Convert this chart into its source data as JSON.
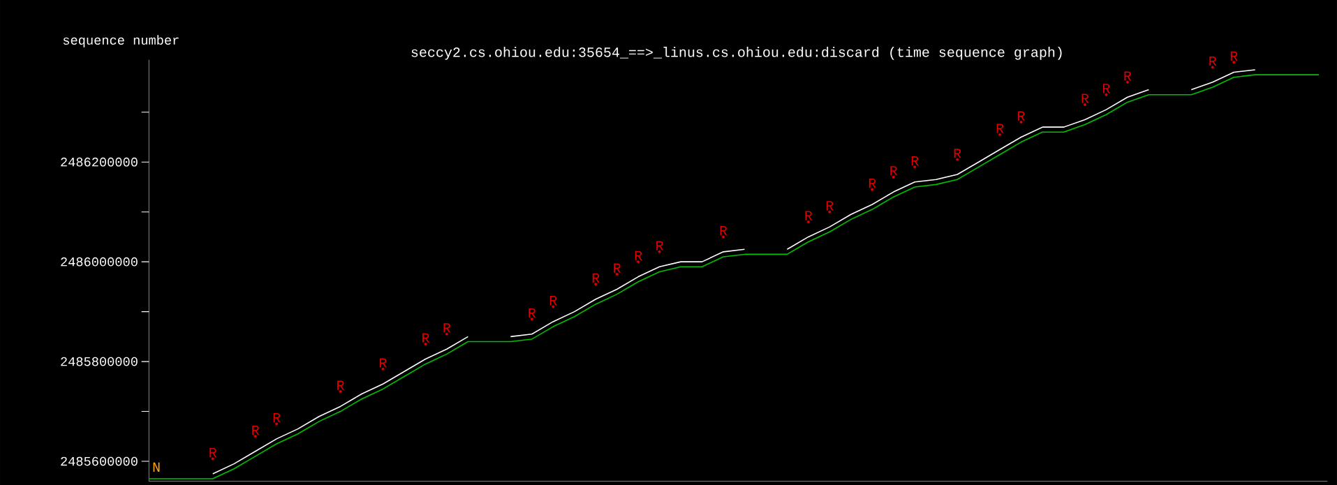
{
  "chart_data": {
    "type": "line",
    "title": "seccy2.cs.ohiou.edu:35654_==>_linus.cs.ohiou.edu:discard (time sequence graph)",
    "ylabel": "sequence number",
    "categories": [
      null,
      null,
      null,
      null,
      null,
      null,
      null,
      null,
      null,
      null,
      null,
      null,
      null,
      null,
      null,
      null,
      null,
      null,
      null,
      null,
      null,
      null,
      null,
      null,
      null,
      null,
      null,
      null,
      null,
      null,
      null,
      null,
      null,
      null,
      null,
      null,
      null,
      null,
      null,
      null,
      null,
      null,
      null,
      null,
      null,
      null,
      null,
      null,
      null,
      null,
      null,
      null,
      null,
      null,
      null,
      null
    ],
    "tick_labels": "y",
    "ylim": [
      2485560000,
      2486405000
    ],
    "yticks": [
      2485600000,
      {
        "value": 2485700000,
        "label": null
      },
      2485800000,
      {
        "value": 2485900000,
        "label": null
      },
      2486000000,
      {
        "value": 2486100000,
        "label": null
      },
      2486200000,
      {
        "value": 2486300000,
        "label": null
      }
    ],
    "series": [
      {
        "color": "#00c000",
        "values": [
          2485565000,
          2485565000,
          2485565000,
          2485565000,
          2485585000,
          2485610000,
          2485635000,
          2485655000,
          2485680000,
          2485700000,
          2485725000,
          2485745000,
          2485770000,
          2485795000,
          2485815000,
          2485840000,
          2485840000,
          2485840000,
          2485845000,
          2485870000,
          2485890000,
          2485915000,
          2485935000,
          2485960000,
          2485980000,
          2485990000,
          2485990000,
          2486010000,
          2486015000,
          2486015000,
          2486015000,
          2486040000,
          2486060000,
          2486085000,
          2486105000,
          2486130000,
          2486150000,
          2486155000,
          2486165000,
          2486190000,
          2486215000,
          2486240000,
          2486260000,
          2486260000,
          2486275000,
          2486295000,
          2486320000,
          2486335000,
          2486335000,
          2486335000,
          2486350000,
          2486370000,
          2486375000,
          2486375000,
          2486375000,
          2486375000
        ]
      },
      {
        "color": "#ffffff",
        "values": [
          null,
          null,
          null,
          2485575000,
          2485595000,
          2485620000,
          2485645000,
          2485665000,
          2485690000,
          2485710000,
          2485735000,
          2485755000,
          2485780000,
          2485805000,
          2485825000,
          2485850000,
          null,
          2485850000,
          2485855000,
          2485880000,
          2485900000,
          2485925000,
          2485945000,
          2485970000,
          2485990000,
          2486000000,
          2486000000,
          2486020000,
          2486025000,
          null,
          2486025000,
          2486050000,
          2486070000,
          2486095000,
          2486115000,
          2486140000,
          2486160000,
          2486165000,
          2486175000,
          2486200000,
          2486225000,
          2486250000,
          2486270000,
          2486270000,
          2486285000,
          2486305000,
          2486330000,
          2486345000,
          null,
          2486345000,
          2486360000,
          2486380000,
          2486385000,
          null,
          null,
          null
        ]
      },
      {
        "type": "scatter",
        "name": "R",
        "color": "#e00000",
        "values": [
          null,
          null,
          null,
          2485605000,
          null,
          2485650000,
          2485675000,
          null,
          null,
          2485740000,
          null,
          2485785000,
          null,
          2485835000,
          2485855000,
          null,
          null,
          null,
          2485885000,
          2485910000,
          null,
          2485955000,
          2485975000,
          2486000000,
          2486020000,
          null,
          null,
          2486050000,
          null,
          null,
          null,
          2486080000,
          2486100000,
          null,
          2486145000,
          2486170000,
          2486190000,
          null,
          2486205000,
          null,
          2486255000,
          2486280000,
          null,
          null,
          2486315000,
          2486335000,
          2486360000,
          null,
          null,
          null,
          2486390000,
          2486400000,
          null,
          null,
          null,
          null
        ]
      }
    ],
    "annotations": [
      "N"
    ]
  }
}
